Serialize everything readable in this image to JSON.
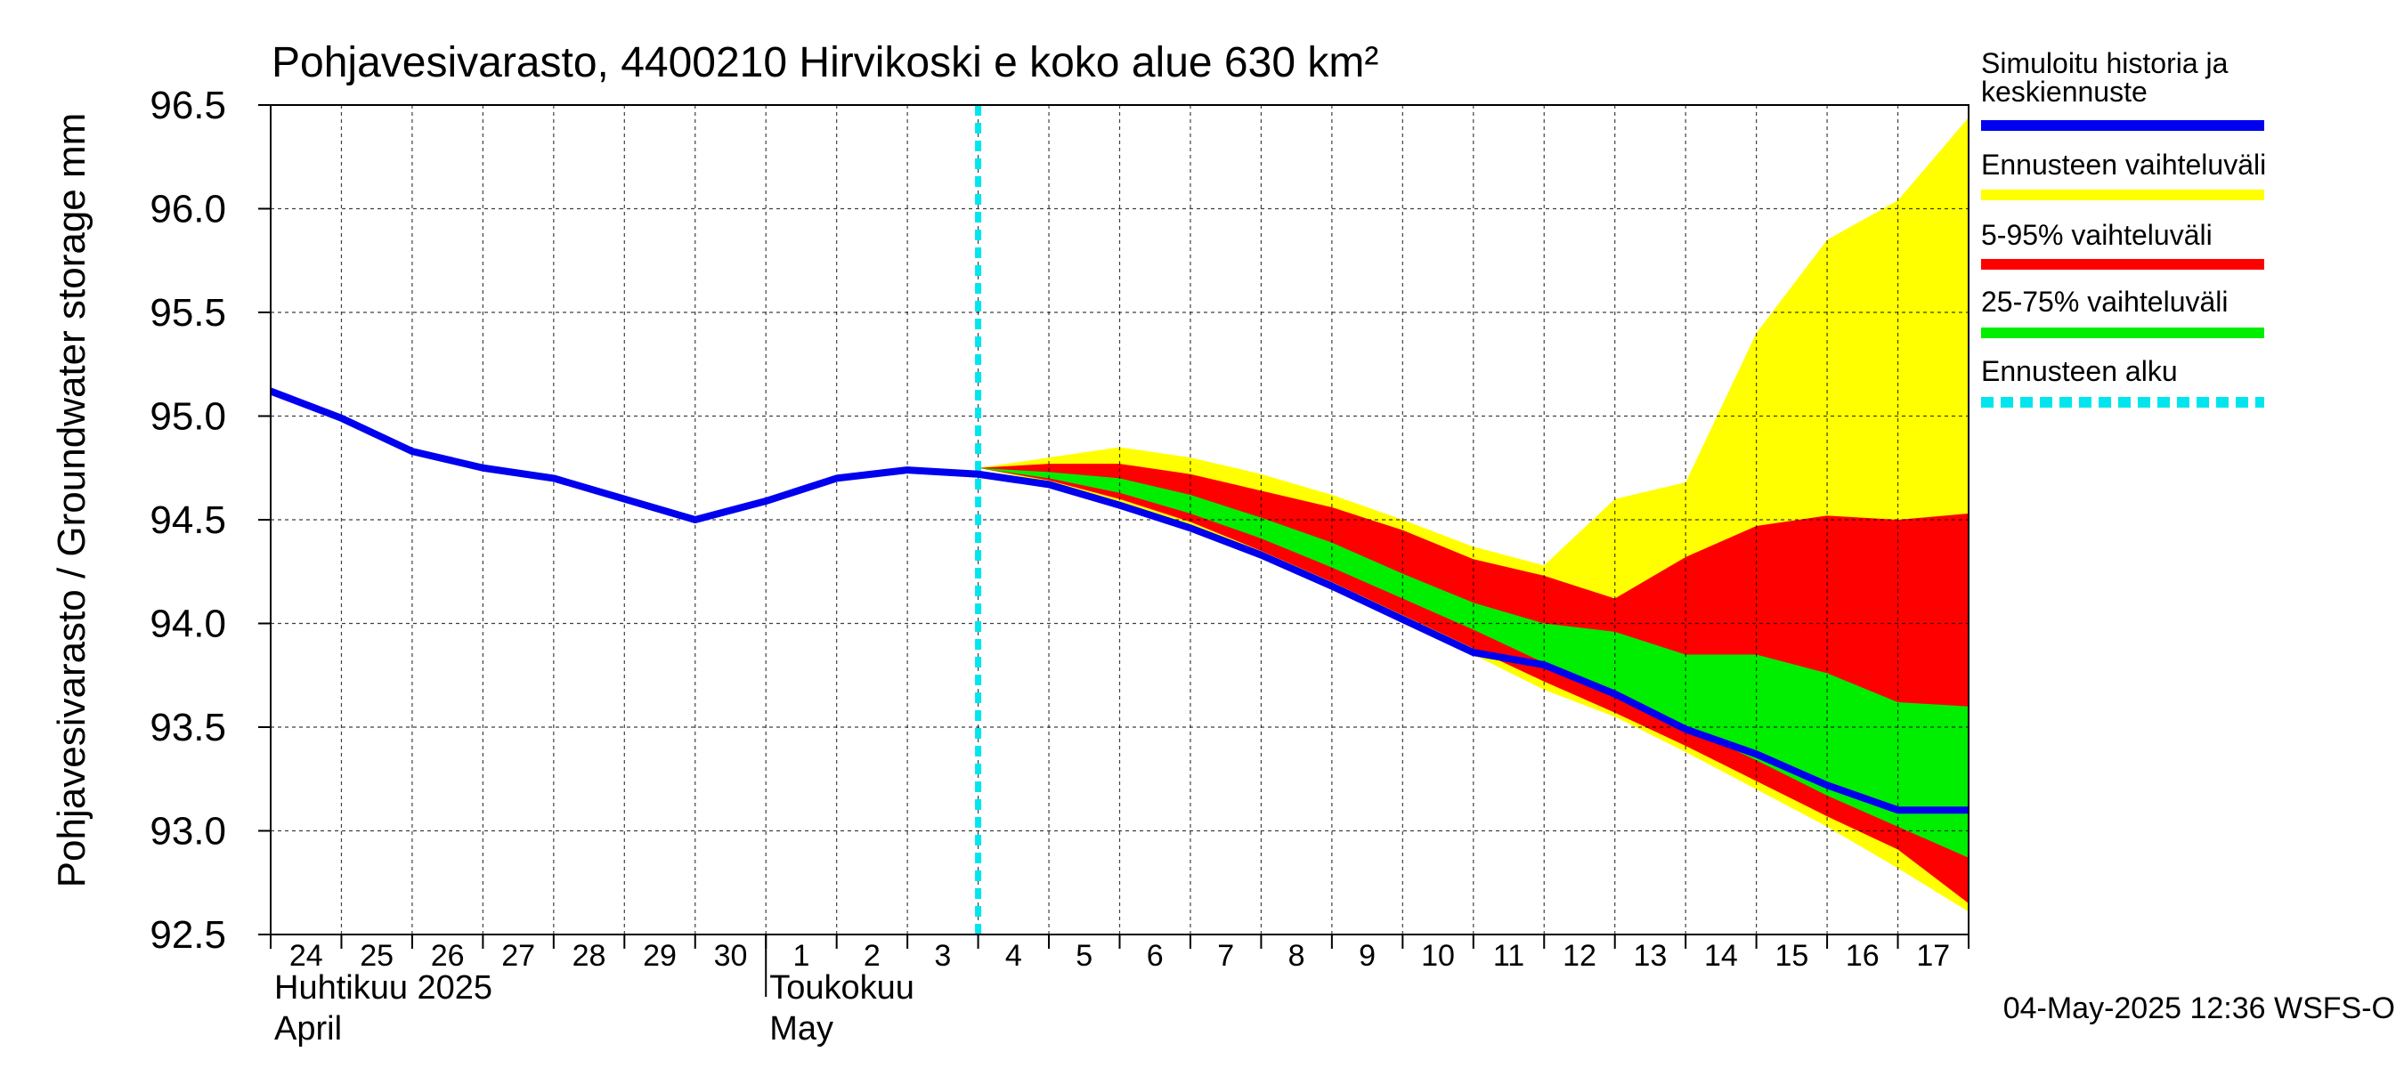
{
  "chart_data": {
    "type": "area",
    "title": "Pohjavesivarasto, 4400210 Hirvikoski e koko alue 630 km²",
    "ylabel": "Pohjavesivarasto / Groundwater storage   mm",
    "xlabel": "",
    "ylim": [
      92.5,
      96.5
    ],
    "yticks": [
      "92.5",
      "93.0",
      "93.5",
      "94.0",
      "94.5",
      "95.0",
      "95.5",
      "96.0",
      "96.5"
    ],
    "x_start": "2025-04-24",
    "x_end": "2025-05-18",
    "x_ticks": [
      {
        "date": "2025-04-24",
        "label": "24"
      },
      {
        "date": "2025-04-25",
        "label": "25"
      },
      {
        "date": "2025-04-26",
        "label": "26"
      },
      {
        "date": "2025-04-27",
        "label": "27"
      },
      {
        "date": "2025-04-28",
        "label": "28"
      },
      {
        "date": "2025-04-29",
        "label": "29"
      },
      {
        "date": "2025-04-30",
        "label": "30"
      },
      {
        "date": "2025-05-01",
        "label": "1"
      },
      {
        "date": "2025-05-02",
        "label": "2"
      },
      {
        "date": "2025-05-03",
        "label": "3"
      },
      {
        "date": "2025-05-04",
        "label": "4"
      },
      {
        "date": "2025-05-05",
        "label": "5"
      },
      {
        "date": "2025-05-06",
        "label": "6"
      },
      {
        "date": "2025-05-07",
        "label": "7"
      },
      {
        "date": "2025-05-08",
        "label": "8"
      },
      {
        "date": "2025-05-09",
        "label": "9"
      },
      {
        "date": "2025-05-10",
        "label": "10"
      },
      {
        "date": "2025-05-11",
        "label": "11"
      },
      {
        "date": "2025-05-12",
        "label": "12"
      },
      {
        "date": "2025-05-13",
        "label": "13"
      },
      {
        "date": "2025-05-14",
        "label": "14"
      },
      {
        "date": "2025-05-15",
        "label": "15"
      },
      {
        "date": "2025-05-16",
        "label": "16"
      },
      {
        "date": "2025-05-17",
        "label": "17"
      }
    ],
    "month_labels": [
      {
        "date": "2025-04-24",
        "line1": "Huhtikuu  2025",
        "line2": "April"
      },
      {
        "date": "2025-05-01",
        "line1": "Toukokuu",
        "line2": "May"
      }
    ],
    "month_divider_date": "2025-05-01",
    "forecast_start": "2025-05-04",
    "series": [
      {
        "name": "Ennusteen vaihteluväli",
        "color": "#ffff00",
        "kind": "band",
        "x": [
          "2025-05-04",
          "2025-05-05",
          "2025-05-06",
          "2025-05-07",
          "2025-05-08",
          "2025-05-09",
          "2025-05-10",
          "2025-05-11",
          "2025-05-12",
          "2025-05-13",
          "2025-05-14",
          "2025-05-15",
          "2025-05-16",
          "2025-05-17",
          "2025-05-18"
        ],
        "upper": [
          94.75,
          94.8,
          94.85,
          94.8,
          94.72,
          94.62,
          94.5,
          94.37,
          94.28,
          94.6,
          94.68,
          95.4,
          95.85,
          96.04,
          96.44
        ],
        "lower": [
          94.75,
          94.68,
          94.58,
          94.46,
          94.32,
          94.17,
          94.0,
          93.85,
          93.68,
          93.55,
          93.38,
          93.2,
          93.02,
          92.82,
          92.61
        ]
      },
      {
        "name": "5-95% vaihteluväli",
        "color": "#ff0000",
        "kind": "band",
        "x": [
          "2025-05-04",
          "2025-05-05",
          "2025-05-06",
          "2025-05-07",
          "2025-05-08",
          "2025-05-09",
          "2025-05-10",
          "2025-05-11",
          "2025-05-12",
          "2025-05-13",
          "2025-05-14",
          "2025-05-15",
          "2025-05-16",
          "2025-05-17",
          "2025-05-18"
        ],
        "upper": [
          94.75,
          94.77,
          94.77,
          94.72,
          94.64,
          94.56,
          94.45,
          94.31,
          94.23,
          94.12,
          94.32,
          94.47,
          94.52,
          94.5,
          94.53
        ],
        "lower": [
          94.75,
          94.69,
          94.6,
          94.49,
          94.35,
          94.2,
          94.04,
          93.88,
          93.72,
          93.57,
          93.41,
          93.24,
          93.07,
          92.91,
          92.65
        ]
      },
      {
        "name": "25-75% vaihteluväli",
        "color": "#00ee00",
        "kind": "band",
        "x": [
          "2025-05-04",
          "2025-05-05",
          "2025-05-06",
          "2025-05-07",
          "2025-05-08",
          "2025-05-09",
          "2025-05-10",
          "2025-05-11",
          "2025-05-12",
          "2025-05-13",
          "2025-05-14",
          "2025-05-15",
          "2025-05-16",
          "2025-05-17",
          "2025-05-18"
        ],
        "upper": [
          94.75,
          94.73,
          94.7,
          94.62,
          94.51,
          94.39,
          94.24,
          94.1,
          94.0,
          93.96,
          93.85,
          93.85,
          93.76,
          93.62,
          93.6
        ],
        "lower": [
          94.75,
          94.7,
          94.63,
          94.53,
          94.41,
          94.27,
          94.12,
          93.97,
          93.81,
          93.66,
          93.5,
          93.34,
          93.17,
          93.02,
          92.87
        ]
      },
      {
        "name": "Simuloitu historia ja keskiennuste",
        "color": "#0000ee",
        "kind": "line",
        "x": [
          "2025-04-23",
          "2025-04-24",
          "2025-04-25",
          "2025-04-26",
          "2025-04-27",
          "2025-04-28",
          "2025-04-29",
          "2025-04-30",
          "2025-05-01",
          "2025-05-02",
          "2025-05-03",
          "2025-05-04",
          "2025-05-05",
          "2025-05-06",
          "2025-05-07",
          "2025-05-08",
          "2025-05-09",
          "2025-05-10",
          "2025-05-11",
          "2025-05-12",
          "2025-05-13",
          "2025-05-14",
          "2025-05-15",
          "2025-05-16",
          "2025-05-17",
          "2025-05-18"
        ],
        "y": [
          95.26,
          95.12,
          94.99,
          94.83,
          94.75,
          94.7,
          94.6,
          94.5,
          94.59,
          94.7,
          94.74,
          94.72,
          94.67,
          94.57,
          94.46,
          94.33,
          94.18,
          94.02,
          93.86,
          93.8,
          93.66,
          93.49,
          93.37,
          93.22,
          93.1,
          93.1
        ]
      }
    ],
    "legend": [
      {
        "label": "Simuloitu historia ja\nkeskiennuste",
        "color": "#0000ee",
        "style": "solid"
      },
      {
        "label": "Ennusteen vaihteluväli",
        "color": "#ffff00",
        "style": "solid"
      },
      {
        "label": "5-95% vaihteluväli",
        "color": "#ff0000",
        "style": "solid"
      },
      {
        "label": "25-75% vaihteluväli",
        "color": "#00ee00",
        "style": "solid"
      },
      {
        "label": "Ennusteen alku",
        "color": "#00e5ee",
        "style": "dashed"
      }
    ],
    "legend_position": "right",
    "grid": true,
    "footer": "04-May-2025 12:36 WSFS-O"
  }
}
